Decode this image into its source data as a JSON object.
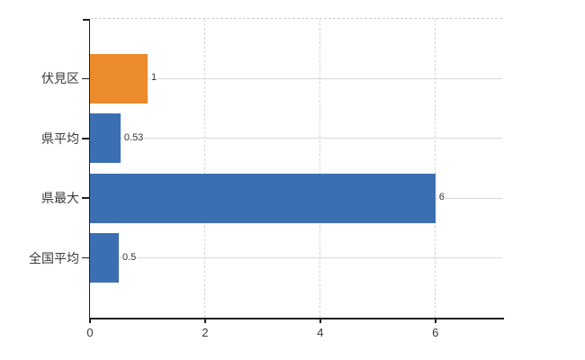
{
  "chart_data": {
    "type": "bar",
    "orientation": "horizontal",
    "title": "",
    "xlabel": "",
    "ylabel": "",
    "categories": [
      "伏見区",
      "県平均",
      "県最大",
      "全国平均"
    ],
    "values": [
      1,
      0.53,
      6,
      0.5
    ],
    "value_labels": [
      "1",
      "0.53",
      "6",
      "0.5"
    ],
    "bar_colors": [
      "#EC8B2C",
      "#3C6FB1",
      "#3C6FB1",
      "#3C6FB1"
    ],
    "x_ticks": [
      0,
      2,
      4,
      6
    ],
    "x_tick_labels": [
      "0",
      "2",
      "4",
      "6"
    ],
    "xlim": [
      0,
      7.16
    ],
    "grid": "on",
    "legend": "none",
    "colors": {
      "axis": "#1f1f1f",
      "grid_solid": "#d9d9d9",
      "grid_dashed": "#d4d4d4",
      "text": "#3a3a3a",
      "background": "#ffffff"
    }
  }
}
